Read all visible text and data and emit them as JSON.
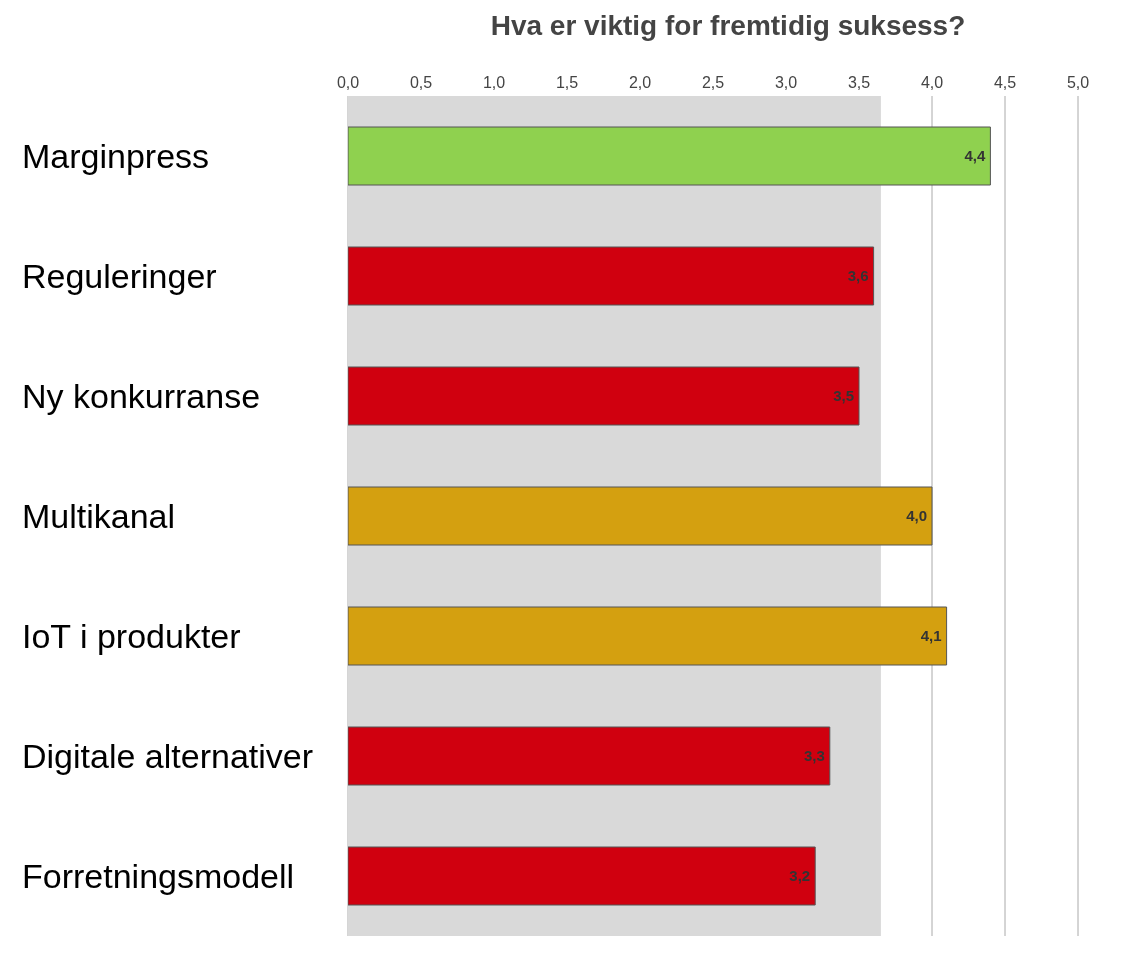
{
  "chart_data": {
    "type": "bar",
    "orientation": "horizontal",
    "title": "Hva er viktig for fremtidig suksess?",
    "categories": [
      "Marginpress",
      "Reguleringer",
      "Ny konkurranse",
      "Multikanal",
      "IoT i produkter",
      "Digitale alternativer",
      "Forretningsmodell"
    ],
    "values": [
      4.4,
      3.6,
      3.5,
      4.0,
      4.1,
      3.3,
      3.2
    ],
    "colors": [
      "#8fd14f",
      "#d0000f",
      "#d0000f",
      "#d4a010",
      "#d4a010",
      "#d0000f",
      "#d0000f"
    ],
    "value_labels": [
      "4,4",
      "3,6",
      "3,5",
      "4,0",
      "4,1",
      "3,3",
      "3,2"
    ],
    "xlim": [
      0,
      5
    ],
    "xticks": [
      {
        "value": 0,
        "label": "0,0"
      },
      {
        "value": 0.5,
        "label": "0,5"
      },
      {
        "value": 1,
        "label": "1,0"
      },
      {
        "value": 1.5,
        "label": "1,5"
      },
      {
        "value": 2,
        "label": "2,0"
      },
      {
        "value": 2.5,
        "label": "2,5"
      },
      {
        "value": 3,
        "label": "3,0"
      },
      {
        "value": 3.5,
        "label": "3,5"
      },
      {
        "value": 4,
        "label": "4,0"
      },
      {
        "value": 4.5,
        "label": "4,5"
      },
      {
        "value": 5,
        "label": "5,0"
      }
    ],
    "bands": [
      {
        "axis": "x",
        "from": 0,
        "to": 3.65,
        "color": "#d9d9d9"
      }
    ],
    "grid": "x"
  }
}
